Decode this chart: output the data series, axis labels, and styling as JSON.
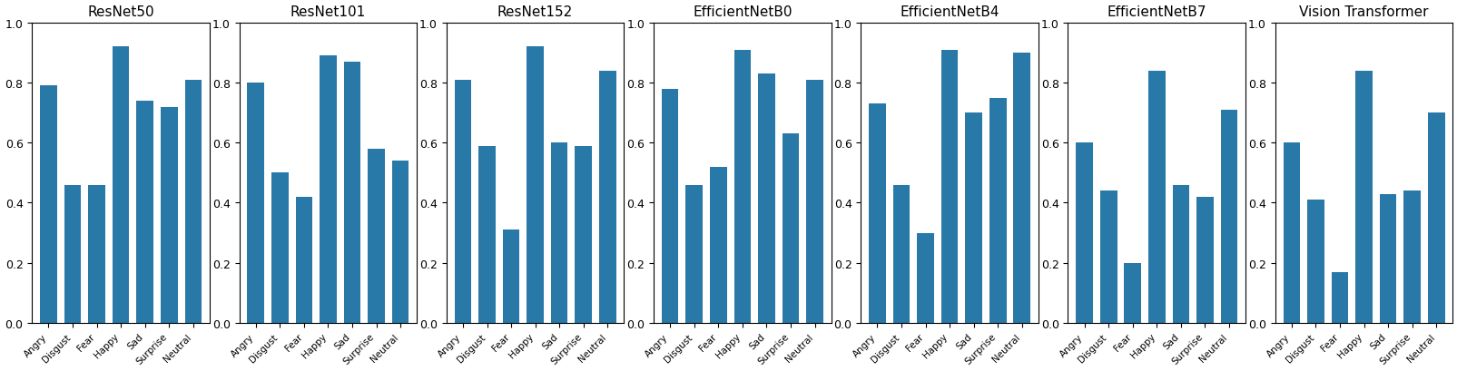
{
  "subplots": [
    {
      "title": "ResNet50",
      "emotions": [
        "Angry",
        "Disgust",
        "Fear",
        "Happy",
        "Sad",
        "Surprise",
        "Neutral"
      ],
      "values": [
        0.79,
        0.46,
        0.46,
        0.92,
        0.74,
        0.72,
        0.81
      ]
    },
    {
      "title": "ResNet101",
      "emotions": [
        "Angry",
        "Disgust",
        "Fear",
        "Happy",
        "Sad",
        "Surprise",
        "Neutral"
      ],
      "values": [
        0.8,
        0.5,
        0.42,
        0.89,
        0.87,
        0.58,
        0.54
      ]
    },
    {
      "title": "ResNet152",
      "emotions": [
        "Angry",
        "Disgust",
        "Fear",
        "Happy",
        "Sad",
        "Surprise",
        "Neutral"
      ],
      "values": [
        0.81,
        0.59,
        0.31,
        0.92,
        0.6,
        0.59,
        0.84
      ]
    },
    {
      "title": "EfficientNetB0",
      "emotions": [
        "Angry",
        "Disgust",
        "Fear",
        "Happy",
        "Sad",
        "Surprise",
        "Neutral"
      ],
      "values": [
        0.78,
        0.46,
        0.52,
        0.91,
        0.83,
        0.63,
        0.81
      ]
    },
    {
      "title": "EfficientNetB4",
      "emotions": [
        "Angry",
        "Disgust",
        "Fear",
        "Happy",
        "Sad",
        "Surprise",
        "Neutral"
      ],
      "values": [
        0.73,
        0.46,
        0.3,
        0.91,
        0.7,
        0.75,
        0.9
      ]
    },
    {
      "title": "EfficientNetB7",
      "emotions": [
        "Angry",
        "Disgust",
        "Fear",
        "Happy",
        "Sad",
        "Surprise",
        "Neutral"
      ],
      "values": [
        0.6,
        0.44,
        0.2,
        0.84,
        0.46,
        0.42,
        0.71
      ]
    },
    {
      "title": "Vision Transformer",
      "emotions": [
        "Angry",
        "Disgust",
        "Fear",
        "Happy",
        "Sad",
        "Surprise",
        "Neutral"
      ],
      "values": [
        0.6,
        0.41,
        0.17,
        0.84,
        0.43,
        0.44,
        0.7
      ]
    }
  ],
  "bar_color": "#2878a8",
  "ylim": [
    0.0,
    1.0
  ],
  "yticks": [
    0.0,
    0.2,
    0.4,
    0.6,
    0.8,
    1.0
  ]
}
